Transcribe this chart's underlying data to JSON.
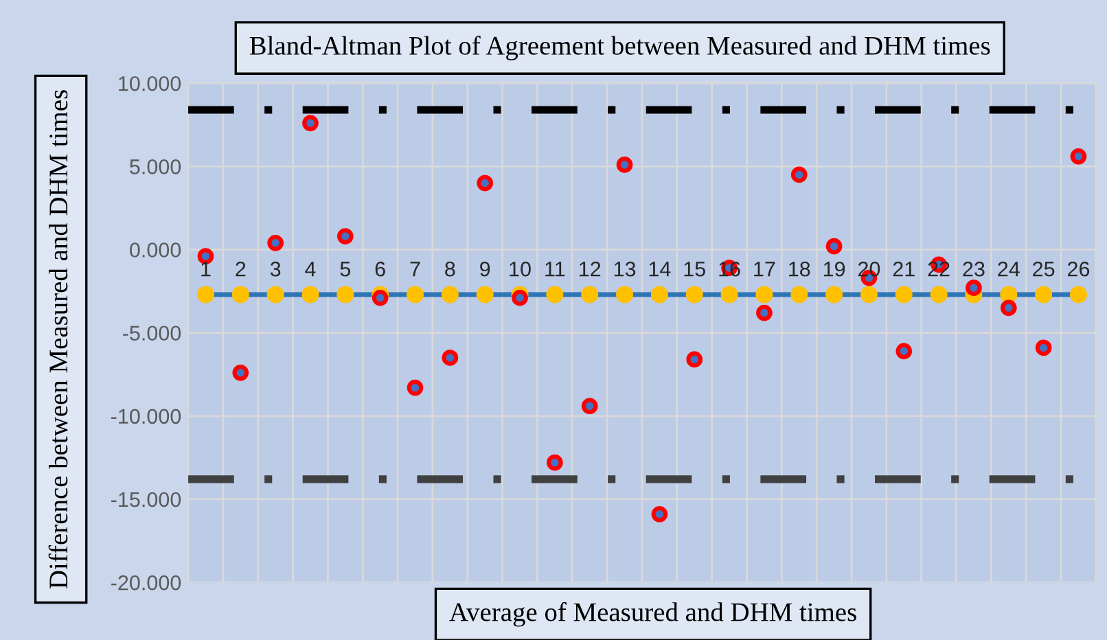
{
  "chart_data": {
    "type": "scatter",
    "title": "Bland-Altman Plot of Agreement between Measured and DHM times",
    "xlabel": "Average of Measured and DHM times",
    "ylabel": "Difference between Measured and DHM times",
    "categories": [
      "1",
      "2",
      "3",
      "4",
      "5",
      "6",
      "7",
      "8",
      "9",
      "10",
      "11",
      "12",
      "13",
      "14",
      "15",
      "16",
      "17",
      "18",
      "19",
      "20",
      "21",
      "22",
      "23",
      "24",
      "25",
      "26"
    ],
    "series": [
      {
        "color": "#ff0000",
        "values": [
          -0.4,
          -7.4,
          0.4,
          7.6,
          0.8,
          -2.9,
          -8.3,
          -6.5,
          4.0,
          -2.9,
          -12.8,
          -9.4,
          5.1,
          -15.9,
          -6.6,
          -1.1,
          -3.8,
          4.5,
          0.2,
          -1.7,
          -6.1,
          -0.9,
          -2.3,
          -3.5,
          -5.9,
          5.6
        ]
      },
      {
        "type": "line",
        "color": "#2e75b6",
        "marker": "circle",
        "values": [
          -2.7,
          -2.7,
          -2.7,
          -2.7,
          -2.7,
          -2.7,
          -2.7,
          -2.7,
          -2.7,
          -2.7,
          -2.7,
          -2.7,
          -2.7,
          -2.7,
          -2.7,
          -2.7,
          -2.7,
          -2.7,
          -2.7,
          -2.7,
          -2.7,
          -2.7,
          -2.7,
          -2.7,
          -2.7,
          -2.7
        ]
      }
    ],
    "ref_lines": [
      {
        "axis": "y",
        "value": 8.4,
        "color": "#000000",
        "line_style": "dashdot"
      },
      {
        "axis": "y",
        "value": -13.8,
        "color": "#404040",
        "line_style": "dashdot"
      }
    ],
    "ylim": [
      -20,
      10
    ],
    "yticks": [
      {
        "value": -20,
        "label": "-20.000"
      },
      {
        "value": -15,
        "label": "-15.000"
      },
      {
        "value": -10,
        "label": "-10.000"
      },
      {
        "value": -5,
        "label": "-5.000"
      },
      {
        "value": 0,
        "label": "0.000"
      },
      {
        "value": 5,
        "label": "5.000"
      },
      {
        "value": 10,
        "label": "10.000"
      }
    ],
    "grid": true
  }
}
